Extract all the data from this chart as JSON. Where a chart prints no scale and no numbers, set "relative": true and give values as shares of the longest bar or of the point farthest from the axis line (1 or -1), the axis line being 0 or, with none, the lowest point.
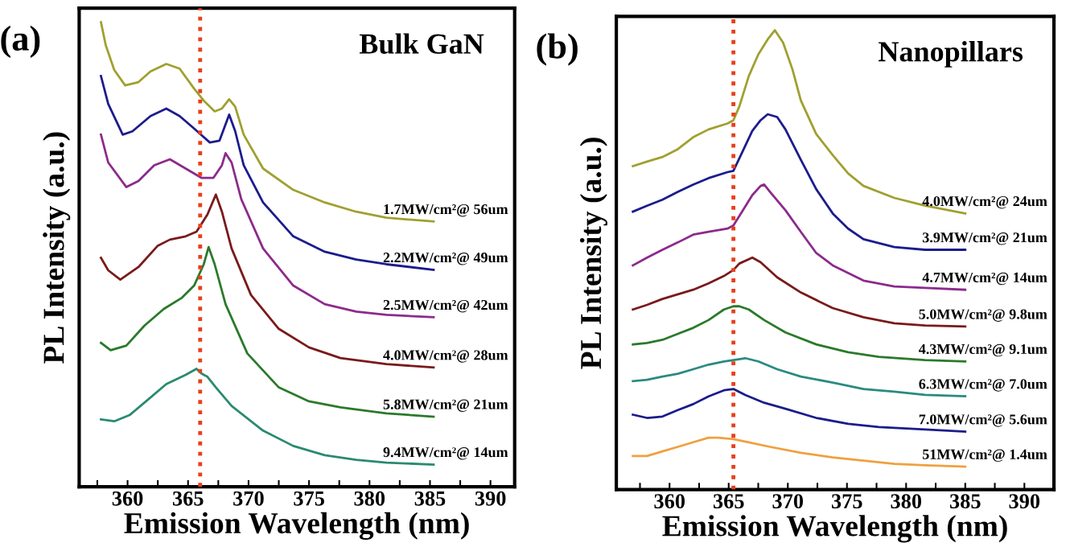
{
  "chart_data": [
    {
      "type": "line",
      "relative": true,
      "title": "Bulk GaN",
      "xlabel": "Emission Wavelength (nm)",
      "ylabel": "PL Intensity (a.u.)",
      "annotations": [
        "(a)"
      ],
      "tick_labels": "x",
      "grid": false,
      "legend": false,
      "line_style": "solid",
      "marker": "none",
      "xlim": [
        356,
        392
      ],
      "xticks": [
        {
          "value": 357.5,
          "label": null
        },
        360,
        {
          "value": 362.5,
          "label": null
        },
        365,
        {
          "value": 367.5,
          "label": null
        },
        370,
        {
          "value": 372.5,
          "label": null
        },
        375,
        {
          "value": 377.5,
          "label": null
        },
        380,
        {
          "value": 382.5,
          "label": null
        },
        385,
        {
          "value": 387.5,
          "label": null
        },
        390
      ],
      "ref_lines": [
        {
          "axis": "x",
          "value": 366,
          "color": "#e8401c",
          "line_style": "dotted"
        }
      ],
      "series": [
        {
          "name": "1.7MW/cm²@ 56um",
          "color": "#a0a030",
          "x": [
            357.8,
            358.2,
            358.9,
            359.8,
            360.9,
            361.9,
            363.2,
            364.3,
            365.5,
            366.3,
            367.2,
            367.8,
            368.4,
            368.9,
            369.6,
            371.2,
            373.7,
            376.3,
            378.9,
            381.4,
            385.3
          ],
          "values": [
            1.0,
            0.95,
            0.897,
            0.864,
            0.871,
            0.894,
            0.91,
            0.9,
            0.857,
            0.831,
            0.808,
            0.814,
            0.834,
            0.818,
            0.758,
            0.685,
            0.639,
            0.612,
            0.592,
            0.579,
            0.571
          ]
        },
        {
          "name": "2.2MW/cm²@ 49um",
          "color": "#1c1c8c",
          "x": [
            357.8,
            358.4,
            359.6,
            360.4,
            361.9,
            363.2,
            364.3,
            365.5,
            366.8,
            367.6,
            368.4,
            368.9,
            369.6,
            371.2,
            373.7,
            376.3,
            378.9,
            381.4,
            385.3
          ],
          "values": [
            0.884,
            0.824,
            0.758,
            0.765,
            0.798,
            0.814,
            0.798,
            0.771,
            0.741,
            0.745,
            0.801,
            0.765,
            0.692,
            0.612,
            0.539,
            0.506,
            0.489,
            0.479,
            0.467
          ]
        },
        {
          "name": "2.5MW/cm²@ 42um",
          "color": "#8c2a8c",
          "x": [
            357.8,
            358.4,
            359.9,
            360.9,
            362.2,
            363.5,
            364.8,
            366.1,
            367.1,
            367.8,
            368.1,
            368.6,
            369.4,
            371.2,
            373.7,
            376.3,
            378.9,
            381.4,
            385.3
          ],
          "values": [
            0.758,
            0.698,
            0.645,
            0.658,
            0.692,
            0.705,
            0.685,
            0.665,
            0.665,
            0.692,
            0.718,
            0.698,
            0.619,
            0.513,
            0.433,
            0.393,
            0.377,
            0.37,
            0.365
          ]
        },
        {
          "name": "4.0MW/cm²@ 28um",
          "color": "#7a1a1a",
          "x": [
            357.8,
            358.4,
            359.4,
            360.9,
            362.5,
            363.5,
            364.8,
            365.7,
            366.6,
            367.3,
            367.8,
            368.6,
            370.2,
            372.5,
            375.0,
            377.6,
            381.4,
            385.3
          ],
          "values": [
            0.493,
            0.466,
            0.446,
            0.473,
            0.519,
            0.532,
            0.539,
            0.549,
            0.586,
            0.629,
            0.592,
            0.513,
            0.413,
            0.34,
            0.3,
            0.277,
            0.264,
            0.257
          ]
        },
        {
          "name": "5.8MW/cm²@ 21um",
          "color": "#2a7a2a",
          "x": [
            357.8,
            358.6,
            359.9,
            361.4,
            363.0,
            364.5,
            365.5,
            366.3,
            366.7,
            367.2,
            368.1,
            369.9,
            372.5,
            375.0,
            377.6,
            381.4,
            385.3
          ],
          "values": [
            0.31,
            0.294,
            0.304,
            0.347,
            0.383,
            0.407,
            0.433,
            0.479,
            0.516,
            0.479,
            0.393,
            0.287,
            0.214,
            0.184,
            0.171,
            0.158,
            0.151
          ]
        },
        {
          "name": "9.4MW/cm²@ 14um",
          "color": "#2a8a70",
          "x": [
            357.8,
            358.9,
            360.2,
            361.7,
            363.2,
            364.8,
            365.7,
            366.1,
            366.6,
            367.3,
            368.6,
            371.2,
            373.7,
            376.3,
            378.9,
            381.4,
            385.3
          ],
          "values": [
            0.145,
            0.141,
            0.155,
            0.188,
            0.221,
            0.241,
            0.254,
            0.244,
            0.237,
            0.214,
            0.174,
            0.121,
            0.088,
            0.068,
            0.058,
            0.052,
            0.048
          ]
        }
      ]
    },
    {
      "type": "line",
      "relative": true,
      "title": "Nanopillars",
      "xlabel": "Emission Wavelength (nm)",
      "ylabel": "PL Intensity (a.u.)",
      "annotations": [
        "(b)"
      ],
      "tick_labels": "x",
      "grid": false,
      "legend": false,
      "line_style": "solid",
      "marker": "none",
      "xlim": [
        355.5,
        392.5
      ],
      "xticks": [
        {
          "value": 357.5,
          "label": null
        },
        360,
        {
          "value": 362.5,
          "label": null
        },
        365,
        {
          "value": 367.5,
          "label": null
        },
        370,
        {
          "value": 372.5,
          "label": null
        },
        375,
        {
          "value": 377.5,
          "label": null
        },
        380,
        {
          "value": 382.5,
          "label": null
        },
        385,
        {
          "value": 387.5,
          "label": null
        },
        390
      ],
      "ref_lines": [
        {
          "axis": "x",
          "value": 365.4,
          "color": "#e8401c",
          "line_style": "dotted"
        }
      ],
      "series": [
        {
          "name": "4.0MW/cm²@ 24um",
          "color": "#a0a030",
          "x": [
            356.9,
            358.1,
            359.4,
            360.7,
            362.0,
            363.3,
            364.9,
            365.4,
            365.9,
            366.7,
            367.5,
            368.3,
            368.9,
            369.6,
            370.4,
            371.1,
            372.4,
            373.8,
            375.1,
            376.4,
            379.0,
            381.6,
            385.0
          ],
          "values": [
            0.704,
            0.714,
            0.724,
            0.741,
            0.767,
            0.784,
            0.797,
            0.804,
            0.834,
            0.9,
            0.947,
            0.98,
            1.0,
            0.973,
            0.914,
            0.847,
            0.774,
            0.728,
            0.688,
            0.661,
            0.635,
            0.618,
            0.601
          ]
        },
        {
          "name": "3.9MW/cm²@ 21um",
          "color": "#1c1c8c",
          "x": [
            356.9,
            358.1,
            359.4,
            360.7,
            362.0,
            363.3,
            364.9,
            365.4,
            365.9,
            367.0,
            367.7,
            368.3,
            369.1,
            369.8,
            371.1,
            372.4,
            373.8,
            375.1,
            376.4,
            379.0,
            381.6,
            385.0
          ],
          "values": [
            0.605,
            0.618,
            0.631,
            0.648,
            0.664,
            0.678,
            0.691,
            0.694,
            0.721,
            0.781,
            0.804,
            0.817,
            0.811,
            0.784,
            0.718,
            0.654,
            0.601,
            0.568,
            0.545,
            0.528,
            0.522,
            0.522
          ]
        },
        {
          "name": "4.7MW/cm²@ 14um",
          "color": "#8c2a8c",
          "x": [
            356.9,
            358.1,
            359.4,
            360.7,
            362.0,
            363.3,
            364.9,
            365.4,
            366.2,
            367.0,
            367.7,
            368.0,
            368.5,
            369.8,
            371.1,
            372.4,
            373.8,
            376.4,
            379.0,
            381.6,
            385.0
          ],
          "values": [
            0.488,
            0.505,
            0.522,
            0.538,
            0.555,
            0.561,
            0.568,
            0.575,
            0.608,
            0.641,
            0.661,
            0.664,
            0.648,
            0.608,
            0.561,
            0.515,
            0.488,
            0.455,
            0.442,
            0.439,
            0.435
          ]
        },
        {
          "name": "5.0MW/cm²@ 9.8um",
          "color": "#7a1a1a",
          "x": [
            356.9,
            358.1,
            359.4,
            360.7,
            362.0,
            363.3,
            364.6,
            365.4,
            365.9,
            367.0,
            367.7,
            369.1,
            371.1,
            373.8,
            376.4,
            379.0,
            381.6,
            385.0
          ],
          "values": [
            0.392,
            0.402,
            0.415,
            0.425,
            0.435,
            0.449,
            0.465,
            0.478,
            0.492,
            0.505,
            0.495,
            0.462,
            0.429,
            0.395,
            0.375,
            0.362,
            0.357,
            0.355
          ]
        },
        {
          "name": "4.3MW/cm²@ 9.1um",
          "color": "#2a7a2a",
          "x": [
            356.9,
            358.1,
            359.4,
            360.7,
            362.0,
            363.3,
            364.6,
            365.4,
            365.9,
            366.7,
            368.0,
            369.8,
            372.4,
            375.1,
            377.7,
            381.6,
            385.0
          ],
          "values": [
            0.316,
            0.319,
            0.326,
            0.339,
            0.352,
            0.369,
            0.392,
            0.399,
            0.399,
            0.392,
            0.369,
            0.342,
            0.316,
            0.299,
            0.289,
            0.282,
            0.279
          ]
        },
        {
          "name": "6.3MW/cm²@ 7.0um",
          "color": "#2a8a80",
          "x": [
            356.9,
            358.1,
            359.4,
            360.7,
            362.0,
            363.3,
            364.6,
            365.4,
            366.4,
            367.5,
            369.1,
            371.1,
            373.8,
            376.4,
            379.0,
            381.6,
            385.0
          ],
          "values": [
            0.236,
            0.239,
            0.246,
            0.252,
            0.262,
            0.272,
            0.279,
            0.282,
            0.286,
            0.279,
            0.262,
            0.246,
            0.233,
            0.219,
            0.213,
            0.206,
            0.203
          ]
        },
        {
          "name": "7.0MW/cm²@ 5.6um",
          "color": "#1c1c8c",
          "x": [
            356.9,
            358.1,
            359.4,
            360.7,
            362.0,
            363.3,
            364.6,
            365.4,
            366.4,
            368.0,
            369.8,
            372.4,
            375.1,
            377.7,
            381.6,
            385.0
          ],
          "values": [
            0.163,
            0.156,
            0.159,
            0.173,
            0.186,
            0.203,
            0.216,
            0.219,
            0.206,
            0.189,
            0.176,
            0.156,
            0.143,
            0.136,
            0.131,
            0.126
          ]
        },
        {
          "name": "51MW/cm²@ 1.4um",
          "color": "#f0a040",
          "x": [
            356.9,
            358.1,
            359.4,
            360.7,
            362.0,
            363.3,
            364.1,
            365.4,
            366.7,
            368.5,
            371.1,
            373.8,
            376.4,
            379.0,
            381.6,
            385.0
          ],
          "values": [
            0.073,
            0.073,
            0.083,
            0.093,
            0.103,
            0.113,
            0.113,
            0.11,
            0.103,
            0.093,
            0.08,
            0.07,
            0.063,
            0.056,
            0.053,
            0.05
          ]
        }
      ]
    }
  ]
}
